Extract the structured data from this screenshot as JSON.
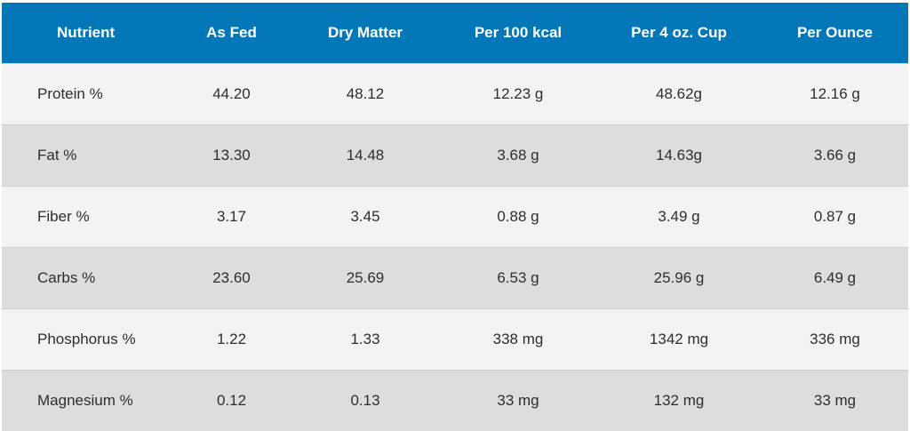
{
  "table": {
    "headers": [
      "Nutrient",
      "As Fed",
      "Dry Matter",
      "Per 100 kcal",
      "Per 4 oz. Cup",
      "Per Ounce"
    ],
    "rows": [
      [
        "Protein %",
        "44.20",
        "48.12",
        "12.23 g",
        "48.62g",
        "12.16 g"
      ],
      [
        "Fat %",
        "13.30",
        "14.48",
        "3.68 g",
        "14.63g",
        "3.66 g"
      ],
      [
        "Fiber %",
        "3.17",
        "3.45",
        "0.88 g",
        "3.49 g",
        "0.87 g"
      ],
      [
        "Carbs %",
        "23.60",
        "25.69",
        "6.53 g",
        "25.96 g",
        "6.49 g"
      ],
      [
        "Phosphorus %",
        "1.22",
        "1.33",
        "338 mg",
        "1342 mg",
        "336 mg"
      ],
      [
        "Magnesium %",
        "0.12",
        "0.13",
        "33 mg",
        "132 mg",
        "33 mg"
      ]
    ]
  },
  "colors": {
    "header_bg": "#0477b8",
    "header_text": "#ffffff",
    "row_light": "#f3f3f3",
    "row_dark": "#dddddd",
    "body_text": "#2e2e2e"
  }
}
